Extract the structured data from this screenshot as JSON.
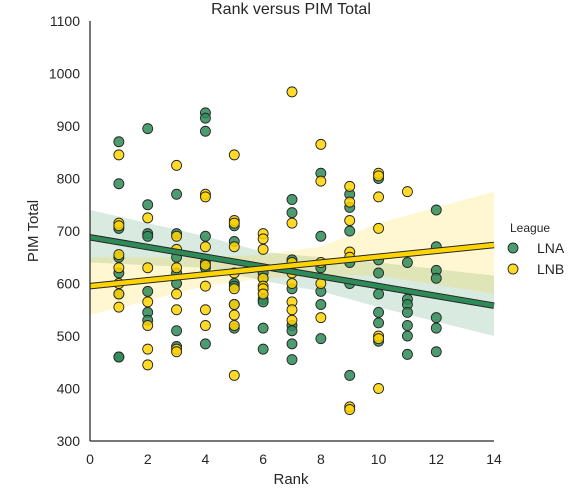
{
  "chart_data": {
    "type": "scatter",
    "title": "Rank versus PIM Total",
    "xlabel": "Rank",
    "ylabel": "PIM Total",
    "xlim": [
      0,
      14
    ],
    "ylim": [
      300,
      1100
    ],
    "xticks": [
      0,
      2,
      4,
      6,
      8,
      10,
      12,
      14
    ],
    "yticks": [
      300,
      400,
      500,
      600,
      700,
      800,
      900,
      1000,
      1100
    ],
    "grid": false,
    "legend": {
      "title": "League",
      "position": "right"
    },
    "series": [
      {
        "name": "LNA",
        "color": "#2e8b57",
        "band_color": "#2e8b57",
        "fit": {
          "intercept": 688,
          "slope": -9.3
        },
        "ci": [
          [
            0,
            640,
            740
          ],
          [
            4,
            630,
            690
          ],
          [
            6,
            605,
            660
          ],
          [
            8,
            585,
            650
          ],
          [
            10,
            555,
            640
          ],
          [
            14,
            500,
            615
          ]
        ],
        "points": [
          [
            1,
            870
          ],
          [
            1,
            790
          ],
          [
            1,
            705
          ],
          [
            1,
            650
          ],
          [
            1,
            620
          ],
          [
            1,
            580
          ],
          [
            1,
            460
          ],
          [
            1,
            460
          ],
          [
            2,
            895
          ],
          [
            2,
            750
          ],
          [
            2,
            695
          ],
          [
            2,
            690
          ],
          [
            2,
            585
          ],
          [
            2,
            545
          ],
          [
            2,
            530
          ],
          [
            3,
            770
          ],
          [
            3,
            695
          ],
          [
            3,
            650
          ],
          [
            3,
            620
          ],
          [
            3,
            600
          ],
          [
            3,
            510
          ],
          [
            3,
            480
          ],
          [
            4,
            925
          ],
          [
            4,
            915
          ],
          [
            4,
            890
          ],
          [
            4,
            690
          ],
          [
            4,
            640
          ],
          [
            4,
            630
          ],
          [
            4,
            485
          ],
          [
            5,
            710
          ],
          [
            5,
            680
          ],
          [
            5,
            600
          ],
          [
            5,
            595
          ],
          [
            5,
            560
          ],
          [
            5,
            515
          ],
          [
            6,
            620
          ],
          [
            6,
            610
          ],
          [
            6,
            570
          ],
          [
            6,
            565
          ],
          [
            6,
            515
          ],
          [
            6,
            475
          ],
          [
            7,
            760
          ],
          [
            7,
            735
          ],
          [
            7,
            645
          ],
          [
            7,
            590
          ],
          [
            7,
            520
          ],
          [
            7,
            510
          ],
          [
            7,
            485
          ],
          [
            7,
            455
          ],
          [
            8,
            810
          ],
          [
            8,
            690
          ],
          [
            8,
            630
          ],
          [
            8,
            585
          ],
          [
            8,
            560
          ],
          [
            8,
            495
          ],
          [
            9,
            770
          ],
          [
            9,
            745
          ],
          [
            9,
            700
          ],
          [
            9,
            640
          ],
          [
            9,
            600
          ],
          [
            9,
            425
          ],
          [
            10,
            800
          ],
          [
            10,
            645
          ],
          [
            10,
            620
          ],
          [
            10,
            580
          ],
          [
            10,
            545
          ],
          [
            10,
            525
          ],
          [
            10,
            490
          ],
          [
            11,
            640
          ],
          [
            11,
            570
          ],
          [
            11,
            560
          ],
          [
            11,
            545
          ],
          [
            11,
            520
          ],
          [
            11,
            500
          ],
          [
            11,
            465
          ],
          [
            12,
            740
          ],
          [
            12,
            670
          ],
          [
            12,
            625
          ],
          [
            12,
            610
          ],
          [
            12,
            535
          ],
          [
            12,
            515
          ],
          [
            12,
            470
          ]
        ]
      },
      {
        "name": "LNB",
        "color": "#ffd400",
        "band_color": "#ffd400",
        "fit": {
          "intercept": 595,
          "slope": 5.6
        },
        "ci": [
          [
            0,
            540,
            650
          ],
          [
            4,
            595,
            650
          ],
          [
            6,
            610,
            655
          ],
          [
            8,
            615,
            670
          ],
          [
            10,
            615,
            715
          ],
          [
            14,
            580,
            775
          ]
        ],
        "points": [
          [
            1,
            845
          ],
          [
            1,
            715
          ],
          [
            1,
            710
          ],
          [
            1,
            655
          ],
          [
            1,
            630
          ],
          [
            1,
            600
          ],
          [
            1,
            580
          ],
          [
            1,
            555
          ],
          [
            2,
            725
          ],
          [
            2,
            630
          ],
          [
            2,
            565
          ],
          [
            2,
            520
          ],
          [
            2,
            475
          ],
          [
            2,
            445
          ],
          [
            3,
            825
          ],
          [
            3,
            690
          ],
          [
            3,
            665
          ],
          [
            3,
            630
          ],
          [
            3,
            580
          ],
          [
            3,
            550
          ],
          [
            3,
            475
          ],
          [
            3,
            470
          ],
          [
            4,
            770
          ],
          [
            4,
            765
          ],
          [
            4,
            670
          ],
          [
            4,
            635
          ],
          [
            4,
            595
          ],
          [
            4,
            550
          ],
          [
            4,
            520
          ],
          [
            5,
            845
          ],
          [
            5,
            720
          ],
          [
            5,
            715
          ],
          [
            5,
            670
          ],
          [
            5,
            620
          ],
          [
            5,
            590
          ],
          [
            5,
            560
          ],
          [
            5,
            540
          ],
          [
            5,
            520
          ],
          [
            5,
            425
          ],
          [
            6,
            695
          ],
          [
            6,
            685
          ],
          [
            6,
            665
          ],
          [
            6,
            610
          ],
          [
            6,
            595
          ],
          [
            6,
            590
          ],
          [
            6,
            580
          ],
          [
            7,
            965
          ],
          [
            7,
            715
          ],
          [
            7,
            640
          ],
          [
            7,
            620
          ],
          [
            7,
            600
          ],
          [
            7,
            565
          ],
          [
            7,
            550
          ],
          [
            7,
            530
          ],
          [
            8,
            865
          ],
          [
            8,
            795
          ],
          [
            8,
            640
          ],
          [
            8,
            600
          ],
          [
            8,
            535
          ],
          [
            9,
            785
          ],
          [
            9,
            755
          ],
          [
            9,
            720
          ],
          [
            9,
            660
          ],
          [
            9,
            650
          ],
          [
            9,
            365
          ],
          [
            9,
            360
          ],
          [
            10,
            810
          ],
          [
            10,
            805
          ],
          [
            10,
            765
          ],
          [
            10,
            705
          ],
          [
            10,
            500
          ],
          [
            10,
            495
          ],
          [
            10,
            400
          ],
          [
            11,
            775
          ]
        ]
      }
    ]
  }
}
